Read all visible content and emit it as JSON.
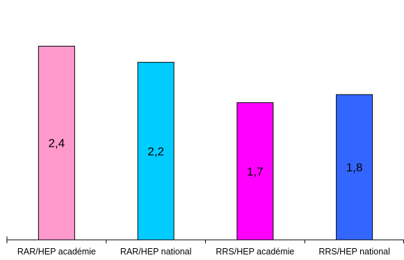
{
  "chart_data": {
    "type": "bar",
    "categories": [
      "RAR/HEP académie",
      "RAR/HEP national",
      "RRS/HEP académie",
      "RRS/HEP national"
    ],
    "values": [
      2.4,
      2.2,
      1.7,
      1.8
    ],
    "value_labels": [
      "2,4",
      "2,2",
      "1,7",
      "1,8"
    ],
    "colors": [
      "#ff99cc",
      "#00ccff",
      "#ff00ff",
      "#3366ff"
    ],
    "ylim": [
      0,
      2.8
    ],
    "grid": false,
    "legend": "none"
  }
}
